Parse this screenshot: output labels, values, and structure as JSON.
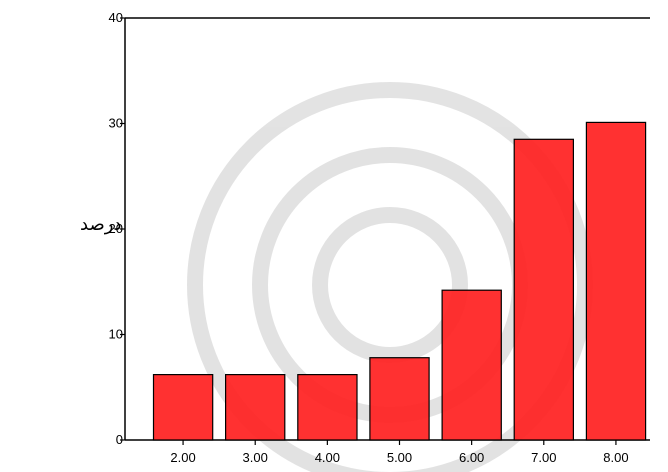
{
  "chart_data": {
    "type": "bar",
    "title": "",
    "xlabel": "",
    "ylabel": "درصد",
    "categories": [
      "2.00",
      "3.00",
      "4.00",
      "5.00",
      "6.00",
      "7.00",
      "8.00"
    ],
    "values": [
      6.2,
      6.2,
      6.2,
      7.8,
      14.2,
      28.5,
      30.1
    ],
    "ylim": [
      0,
      40
    ],
    "yticks": [
      "0",
      "10",
      "20",
      "30",
      "40"
    ],
    "grid": false,
    "legend": "none",
    "bar_color": "#ff2020",
    "bar_stroke": "#000000",
    "watermark": "gray geometric star pattern"
  }
}
